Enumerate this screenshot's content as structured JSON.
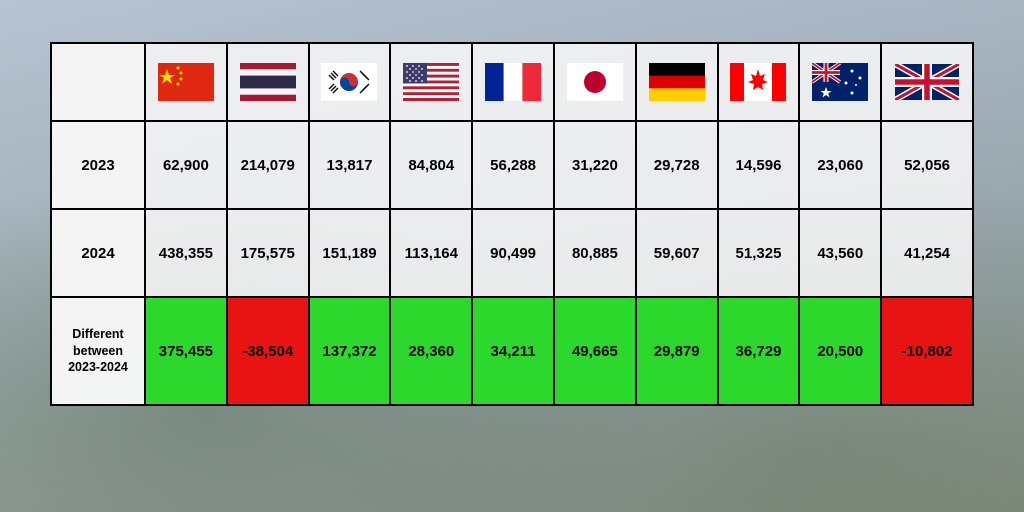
{
  "row_labels": {
    "year1": "2023",
    "year2": "2024",
    "diff": "Different between 2023-2024"
  },
  "colors": {
    "positive": "#2bd82b",
    "negative": "#e81414",
    "cell_bg": "rgba(245,245,245,0.88)",
    "border": "#000000"
  },
  "countries": [
    {
      "code": "cn",
      "name": "China",
      "y2023": "62,900",
      "y2024": "438,355",
      "diff": "375,455",
      "sign": "pos"
    },
    {
      "code": "th",
      "name": "Thailand",
      "y2023": "214,079",
      "y2024": "175,575",
      "diff": "-38,504",
      "sign": "neg"
    },
    {
      "code": "kr",
      "name": "South Korea",
      "y2023": "13,817",
      "y2024": "151,189",
      "diff": "137,372",
      "sign": "pos"
    },
    {
      "code": "us",
      "name": "United States",
      "y2023": "84,804",
      "y2024": "113,164",
      "diff": "28,360",
      "sign": "pos"
    },
    {
      "code": "fr",
      "name": "France",
      "y2023": "56,288",
      "y2024": "90,499",
      "diff": "34,211",
      "sign": "pos"
    },
    {
      "code": "jp",
      "name": "Japan",
      "y2023": "31,220",
      "y2024": "80,885",
      "diff": "49,665",
      "sign": "pos"
    },
    {
      "code": "de",
      "name": "Germany",
      "y2023": "29,728",
      "y2024": "59,607",
      "diff": "29,879",
      "sign": "pos"
    },
    {
      "code": "ca",
      "name": "Canada",
      "y2023": "14,596",
      "y2024": "51,325",
      "diff": "36,729",
      "sign": "pos"
    },
    {
      "code": "au",
      "name": "Australia",
      "y2023": "23,060",
      "y2024": "43,560",
      "diff": "20,500",
      "sign": "pos"
    },
    {
      "code": "gb",
      "name": "United Kingdom",
      "y2023": "52,056",
      "y2024": "41,254",
      "diff": "-10,802",
      "sign": "neg"
    }
  ]
}
